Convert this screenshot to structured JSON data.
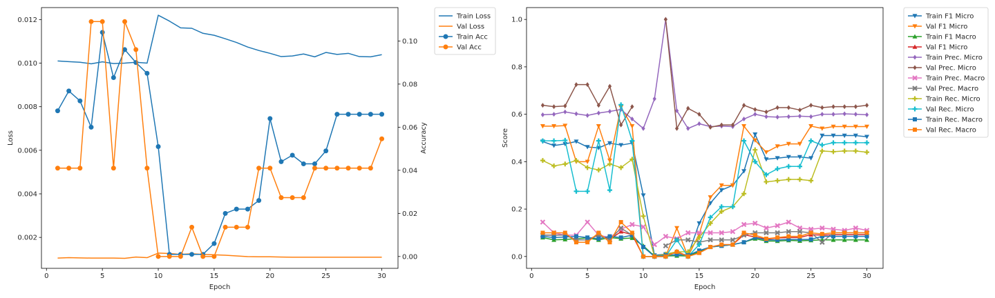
{
  "chart_data": [
    {
      "type": "line",
      "xlabel": "Epoch",
      "ylabel": "Loss",
      "ylabel_right": "Accuracy",
      "xlim": [
        -0.45,
        31.45
      ],
      "ylim": [
        0.00058,
        0.01255
      ],
      "ylim_right": [
        -0.0055,
        0.1155
      ],
      "xticks": [
        0,
        5,
        10,
        15,
        20,
        25,
        30
      ],
      "yticks": [
        0.002,
        0.004,
        0.006,
        0.008,
        0.01,
        0.012
      ],
      "yticks_right": [
        0.0,
        0.02,
        0.04,
        0.06,
        0.08,
        0.1
      ],
      "legend_placement": "outside-right",
      "x": [
        1,
        2,
        3,
        4,
        5,
        6,
        7,
        8,
        9,
        10,
        11,
        12,
        13,
        14,
        15,
        16,
        17,
        18,
        19,
        20,
        21,
        22,
        23,
        24,
        25,
        26,
        27,
        28,
        29,
        30
      ],
      "series": [
        {
          "name": "Train Loss",
          "axis": "left",
          "color": "#1f77b4",
          "marker": "none",
          "values": [
            0.0101,
            0.01007,
            0.01004,
            0.00997,
            0.01006,
            0.00998,
            0.01,
            0.01004,
            0.01,
            0.0122,
            0.01193,
            0.01162,
            0.0116,
            0.01137,
            0.01128,
            0.01112,
            0.01095,
            0.01074,
            0.01058,
            0.01045,
            0.0103,
            0.01033,
            0.01042,
            0.01029,
            0.01049,
            0.0104,
            0.01045,
            0.0103,
            0.01029,
            0.01039
          ]
        },
        {
          "name": "Val Loss",
          "axis": "left",
          "color": "#ff7f0e",
          "marker": "none",
          "values": [
            0.00105,
            0.00107,
            0.00106,
            0.00105,
            0.00105,
            0.00105,
            0.00104,
            0.0011,
            0.00107,
            0.00128,
            0.00126,
            0.00122,
            0.00125,
            0.00122,
            0.0012,
            0.00118,
            0.00115,
            0.00112,
            0.00111,
            0.00111,
            0.0011,
            0.00109,
            0.00109,
            0.00109,
            0.00109,
            0.00109,
            0.00109,
            0.00109,
            0.00109,
            0.00109
          ]
        },
        {
          "name": "Train Acc",
          "axis": "right",
          "color": "#1f77b4",
          "marker": "circle",
          "values": [
            0.0676,
            0.0768,
            0.0722,
            0.06,
            0.104,
            0.083,
            0.096,
            0.09,
            0.085,
            0.051,
            0.001,
            0.001,
            0.001,
            0.001,
            0.006,
            0.02,
            0.022,
            0.022,
            0.026,
            0.064,
            0.044,
            0.047,
            0.043,
            0.043,
            0.049,
            0.066,
            0.066,
            0.066,
            0.066,
            0.066
          ]
        },
        {
          "name": "Val Acc",
          "axis": "right",
          "color": "#ff7f0e",
          "marker": "circle",
          "values": [
            0.041,
            0.041,
            0.041,
            0.109,
            0.109,
            0.041,
            0.109,
            0.096,
            0.041,
            0.0,
            0.0,
            0.0,
            0.0136,
            0.0,
            0.0,
            0.0136,
            0.0136,
            0.0136,
            0.041,
            0.041,
            0.0273,
            0.0273,
            0.0273,
            0.041,
            0.041,
            0.041,
            0.041,
            0.041,
            0.041,
            0.0546
          ]
        }
      ]
    },
    {
      "type": "line",
      "xlabel": "Epoch",
      "ylabel": "Score",
      "xlim": [
        -0.45,
        31.45
      ],
      "ylim": [
        -0.05,
        1.05
      ],
      "xticks": [
        0,
        5,
        10,
        15,
        20,
        25,
        30
      ],
      "yticks": [
        0.0,
        0.2,
        0.4,
        0.6,
        0.8,
        1.0
      ],
      "legend_placement": "outside-right",
      "x": [
        1,
        2,
        3,
        4,
        5,
        6,
        7,
        8,
        9,
        10,
        11,
        12,
        13,
        14,
        15,
        16,
        17,
        18,
        19,
        20,
        21,
        22,
        23,
        24,
        25,
        26,
        27,
        28,
        29,
        30
      ],
      "series": [
        {
          "name": "Train F1 Micro",
          "color": "#1f77b4",
          "marker": "triangle-down",
          "values": [
            0.485,
            0.468,
            0.475,
            0.485,
            0.462,
            0.458,
            0.478,
            0.47,
            0.478,
            0.258,
            0.005,
            0.01,
            0.015,
            0.005,
            0.14,
            0.225,
            0.28,
            0.3,
            0.36,
            0.515,
            0.41,
            0.415,
            0.42,
            0.42,
            0.415,
            0.51,
            0.51,
            0.51,
            0.51,
            0.505
          ]
        },
        {
          "name": "Val F1 Micro",
          "color": "#ff7f0e",
          "marker": "triangle-down",
          "values": [
            0.55,
            0.55,
            0.552,
            0.4,
            0.4,
            0.55,
            0.405,
            0.63,
            0.55,
            0.0,
            0.0,
            0.0,
            0.12,
            0.0,
            0.095,
            0.25,
            0.3,
            0.3,
            0.55,
            0.49,
            0.44,
            0.465,
            0.475,
            0.475,
            0.55,
            0.54,
            0.548,
            0.548,
            0.548,
            0.548
          ]
        },
        {
          "name": "Train F1 Macro",
          "color": "#2ca02c",
          "marker": "triangle-up",
          "values": [
            0.08,
            0.07,
            0.072,
            0.075,
            0.078,
            0.07,
            0.08,
            0.075,
            0.078,
            0.045,
            0.001,
            0.002,
            0.003,
            0.002,
            0.02,
            0.04,
            0.045,
            0.05,
            0.06,
            0.075,
            0.065,
            0.065,
            0.068,
            0.066,
            0.068,
            0.07,
            0.07,
            0.07,
            0.07,
            0.07
          ]
        },
        {
          "name": "Val F1 Micro",
          "color": "#d62728",
          "marker": "triangle-up",
          "values": [
            0.09,
            0.09,
            0.092,
            0.07,
            0.07,
            0.092,
            0.072,
            0.105,
            0.092,
            0.0,
            0.0,
            0.0,
            0.022,
            0.0,
            0.015,
            0.04,
            0.05,
            0.05,
            0.092,
            0.082,
            0.073,
            0.078,
            0.08,
            0.08,
            0.092,
            0.09,
            0.092,
            0.092,
            0.092,
            0.092
          ]
        },
        {
          "name": "Train Prec. Micro",
          "color": "#9467bd",
          "marker": "diamond",
          "values": [
            0.598,
            0.6,
            0.61,
            0.602,
            0.595,
            0.605,
            0.612,
            0.62,
            0.58,
            0.54,
            0.665,
            1.0,
            0.615,
            0.54,
            0.56,
            0.548,
            0.55,
            0.548,
            0.58,
            0.6,
            0.59,
            0.588,
            0.59,
            0.592,
            0.59,
            0.6,
            0.6,
            0.602,
            0.6,
            0.598
          ]
        },
        {
          "name": "Val Prec. Micro",
          "color": "#8c564b",
          "marker": "diamond",
          "values": [
            0.638,
            0.632,
            0.635,
            0.725,
            0.725,
            0.638,
            0.718,
            0.555,
            0.632,
            null,
            null,
            1.0,
            0.54,
            0.625,
            0.6,
            0.545,
            0.555,
            0.555,
            0.638,
            0.62,
            0.61,
            0.628,
            0.628,
            0.618,
            0.638,
            0.628,
            0.632,
            0.632,
            0.632,
            0.638
          ]
        },
        {
          "name": "Train Prec. Macro",
          "color": "#e377c2",
          "marker": "x",
          "values": [
            0.145,
            0.1,
            0.09,
            0.09,
            0.145,
            0.09,
            0.08,
            0.115,
            0.135,
            0.125,
            0.05,
            0.085,
            0.075,
            0.1,
            0.1,
            0.1,
            0.1,
            0.105,
            0.135,
            0.14,
            0.12,
            0.13,
            0.145,
            0.12,
            0.115,
            0.12,
            0.115,
            0.11,
            0.12,
            0.11
          ]
        },
        {
          "name": "Val Prec. Macro",
          "color": "#7f7f7f",
          "marker": "x",
          "values": [
            0.09,
            0.09,
            0.09,
            0.07,
            0.07,
            0.09,
            0.07,
            0.12,
            0.09,
            null,
            null,
            0.045,
            0.07,
            0.07,
            0.06,
            0.07,
            0.07,
            0.07,
            0.09,
            0.1,
            0.1,
            0.1,
            0.105,
            0.105,
            0.1,
            0.06,
            0.1,
            0.1,
            0.1,
            0.1
          ]
        },
        {
          "name": "Train Rec. Micro",
          "color": "#bcbd22",
          "marker": "plus",
          "values": [
            0.405,
            0.382,
            0.39,
            0.405,
            0.375,
            0.365,
            0.39,
            0.375,
            0.41,
            0.17,
            0.0,
            0.01,
            0.02,
            0.02,
            0.08,
            0.14,
            0.19,
            0.21,
            0.265,
            0.45,
            0.315,
            0.32,
            0.325,
            0.325,
            0.32,
            0.445,
            0.442,
            0.445,
            0.445,
            0.44
          ]
        },
        {
          "name": "Val Rec. Micro",
          "color": "#17becf",
          "marker": "plus",
          "values": [
            0.488,
            0.488,
            0.49,
            0.275,
            0.275,
            0.488,
            0.28,
            0.64,
            0.488,
            0.0,
            0.0,
            0.0,
            0.07,
            0.0,
            0.05,
            0.165,
            0.21,
            0.21,
            0.488,
            0.4,
            0.345,
            0.37,
            0.38,
            0.38,
            0.488,
            0.47,
            0.48,
            0.48,
            0.48,
            0.48
          ]
        },
        {
          "name": "Train Rec. Macro",
          "color": "#1f77b4",
          "marker": "square",
          "values": [
            0.085,
            0.08,
            0.082,
            0.085,
            0.08,
            0.075,
            0.085,
            0.08,
            0.09,
            0.04,
            0.0,
            0.005,
            0.008,
            0.005,
            0.025,
            0.04,
            0.045,
            0.05,
            0.06,
            0.08,
            0.07,
            0.07,
            0.072,
            0.072,
            0.072,
            0.085,
            0.085,
            0.085,
            0.085,
            0.085
          ]
        },
        {
          "name": "Val Rec. Macro",
          "color": "#ff7f0e",
          "marker": "square",
          "values": [
            0.1,
            0.1,
            0.1,
            0.06,
            0.06,
            0.1,
            0.06,
            0.145,
            0.1,
            0.0,
            0.0,
            0.0,
            0.02,
            0.0,
            0.015,
            0.04,
            0.05,
            0.05,
            0.1,
            0.09,
            0.075,
            0.08,
            0.085,
            0.085,
            0.1,
            0.095,
            0.1,
            0.1,
            0.1,
            0.1
          ]
        }
      ]
    }
  ]
}
